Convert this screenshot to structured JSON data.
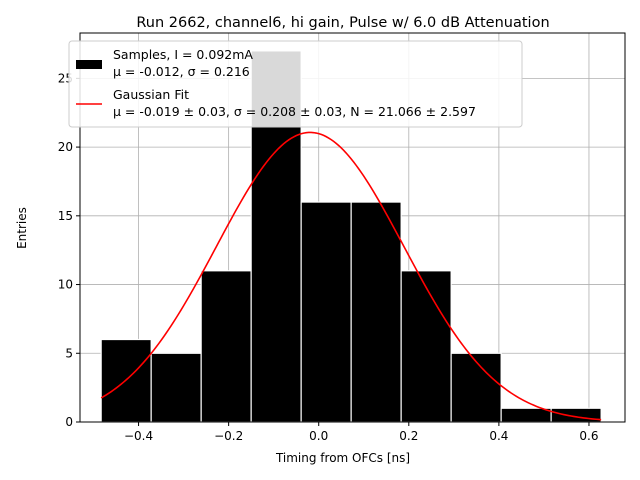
{
  "chart_data": {
    "type": "bar",
    "title": "Run 2662, channel6, hi gain, Pulse w/ 6.0 dB Attenuation",
    "xlabel": "Timing from OFCs [ns]",
    "ylabel": "Entries",
    "xlim": [
      -0.53,
      0.68
    ],
    "ylim": [
      0,
      28.3
    ],
    "xticks": [
      -0.4,
      -0.2,
      0.0,
      0.2,
      0.4,
      0.6
    ],
    "xtick_labels": [
      "−0.4",
      "−0.2",
      "0.0",
      "0.2",
      "0.4",
      "0.6"
    ],
    "yticks": [
      0,
      5,
      10,
      15,
      20,
      25
    ],
    "ytick_labels": [
      "0",
      "5",
      "10",
      "15",
      "20",
      "25"
    ],
    "grid": true,
    "legend_position": "top-left",
    "histogram": {
      "bin_edges": [
        -0.483,
        -0.372,
        -0.261,
        -0.15,
        -0.039,
        0.072,
        0.183,
        0.294,
        0.405,
        0.516,
        0.627
      ],
      "counts": [
        6,
        5,
        11,
        27,
        16,
        16,
        11,
        5,
        1,
        1
      ],
      "color": "#000000"
    },
    "gaussian_fit": {
      "mu": -0.019,
      "sigma": 0.208,
      "N": 21.066,
      "x_range": [
        -0.483,
        0.627
      ],
      "color": "#ff0000"
    },
    "legend": [
      {
        "label_line1": "Samples, I = 0.092mA",
        "label_line2": "μ = -0.012, σ = 0.216",
        "kind": "bar"
      },
      {
        "label_line1": "Gaussian Fit",
        "label_line2": "μ = -0.019 ± 0.03, σ = 0.208 ± 0.03, N = 21.066 ± 2.597",
        "kind": "line"
      }
    ]
  }
}
